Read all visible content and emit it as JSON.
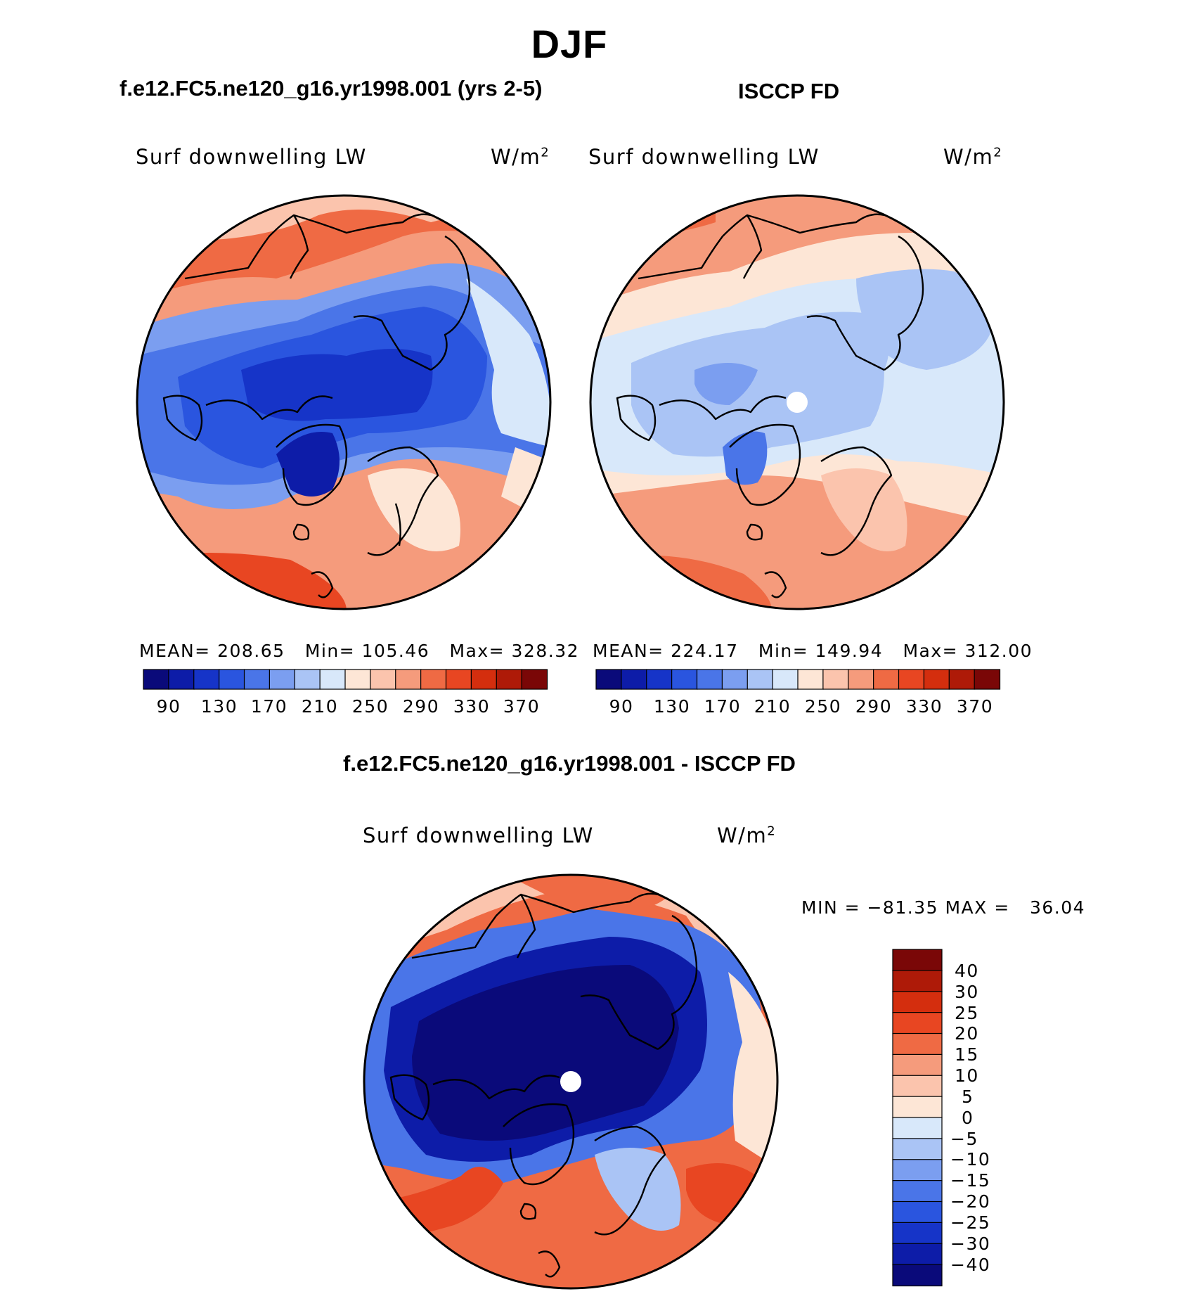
{
  "season": "DJF",
  "panels": [
    {
      "id": "model",
      "title": "f.e12.FC5.ne120_g16.yr1998.001 (yrs 2-5)",
      "variable": "Surf downwelling LW",
      "units": "W/m",
      "units_exp": "2",
      "stats": "MEAN= 208.65   Min= 105.46   Max= 328.32",
      "colorbar_ticks": [
        "90",
        "130",
        "170",
        "210",
        "250",
        "290",
        "330",
        "370"
      ]
    },
    {
      "id": "obs",
      "title": "ISCCP FD",
      "variable": "Surf downwelling LW",
      "units": "W/m",
      "units_exp": "2",
      "stats": "MEAN= 224.17   Min= 149.94   Max= 312.00",
      "colorbar_ticks": [
        "90",
        "130",
        "170",
        "210",
        "250",
        "290",
        "330",
        "370"
      ]
    }
  ],
  "diff_panel": {
    "title": "f.e12.FC5.ne120_g16.yr1998.001 - ISCCP FD",
    "variable": "Surf downwelling LW",
    "units": "W/m",
    "units_exp": "2",
    "stats": "MIN = −81.35 MAX =   36.04",
    "colorbar_ticks": [
      "40",
      "30",
      "25",
      "20",
      "15",
      "10",
      "5",
      "0",
      "−5",
      "−10",
      "−15",
      "−20",
      "−25",
      "−30",
      "−40"
    ]
  },
  "colors": {
    "abs_scale": [
      "#0a0a7a",
      "#0d1ca8",
      "#1634c8",
      "#2a55df",
      "#4a75e8",
      "#7b9ef0",
      "#aac4f5",
      "#d8e8fa",
      "#fde6d6",
      "#fbc4ad",
      "#f59b7c",
      "#ef6a44",
      "#e84622",
      "#d42e0e",
      "#ae1a08",
      "#7a0707"
    ],
    "diff_scale_top_to_bottom": [
      "#7a0707",
      "#ae1a08",
      "#d42e0e",
      "#e84622",
      "#ef6a44",
      "#f59b7c",
      "#fbc4ad",
      "#fde6d6",
      "#d8e8fa",
      "#aac4f5",
      "#7b9ef0",
      "#4a75e8",
      "#2a55df",
      "#1634c8",
      "#0d1ca8",
      "#0a0a7a"
    ]
  }
}
